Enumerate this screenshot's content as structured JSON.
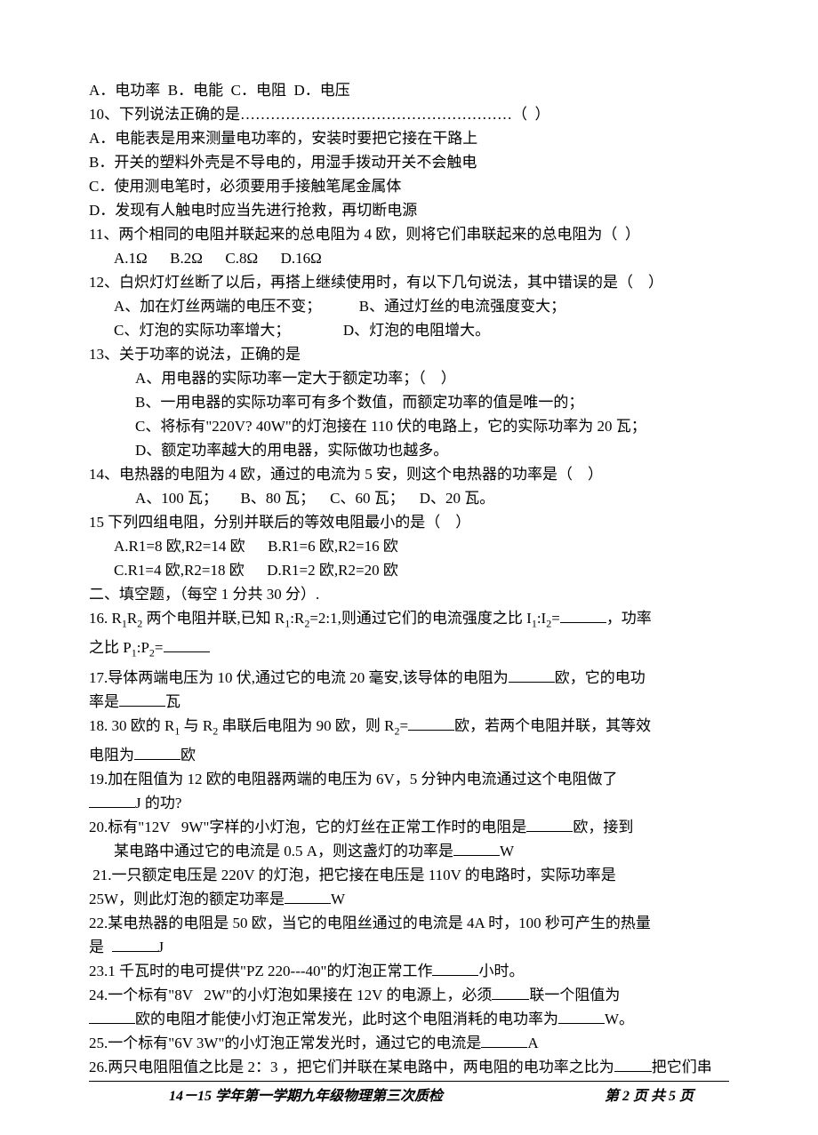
{
  "q9_options": "A．电功率  B．电能  C．电阻  D．电压",
  "q10_stem": "10、下列说法正确的是………………………………………………（  ）",
  "q10_a": "A．电能表是用来测量电功率的，安装时要把它接在干路上",
  "q10_b": "B．开关的塑料外壳是不导电的，用湿手拨动开关不会触电",
  "q10_c": "C．使用测电笔时，必须要用手接触笔尾金属体",
  "q10_d": "D．发现有人触电时应当先进行抢救，再切断电源",
  "q11": "11、两个相同的电阻并联起来的总电阻为 4 欧，则将它们串联起来的总电阻为（  ）",
  "q11_opts": "A.1Ω      B.2Ω      C.8Ω      D.16Ω",
  "q12": "12、白炽灯灯丝断了以后，再搭上继续使用时，有以下几句说法，其中错误的是（    ）",
  "q12_ab": "A、加在灯丝两端的电压不变；          B、通过灯丝的电流强度变大；",
  "q12_cd": "C、灯泡的实际功率增大；              D、灯泡的电阻增大。",
  "q13": "13、关于功率的说法，正确的是",
  "q13_a": "A、用电器的实际功率一定大于额定功率；（    ）",
  "q13_b": "B、一用电器的实际功率可有多个数值，而额定功率的值是唯一的；",
  "q13_c": "C、将标有\"220V? 40W\"的灯泡接在 110 伏的电路上，它的实际功率为 20 瓦；",
  "q13_d": "D、额定功率越大的用电器，实际做功也越多。",
  "q14": "14、电热器的电阻为 4 欧，通过的电流为 5 安，则这个电热器的功率是（    ）",
  "q14_opts": "A、100 瓦；      B、80 瓦；    C、60 瓦；    D、20 瓦。",
  "q15": "15 下列四组电阻，分别并联后的等效电阻最小的是（    ）",
  "q15_ab": "A.R1=8 欧,R2=14 欧      B.R1=6 欧,R2=16 欧",
  "q15_cd": "C.R1=4 欧,R2=18 欧      D.R1=2 欧,R2=20 欧",
  "section2": "二、填空题，（每空 1 分共 30 分）.",
  "q16_a": "16. R",
  "q16_b": "R",
  "q16_c": " 两个电阻并联,已知 R",
  "q16_d": ":R",
  "q16_e": "=2:1,则通过它们的电流强度之比 I",
  "q16_f": ":I",
  "q16_g": "=",
  "q16_h": "，功率",
  "q16_2a": "之比 P",
  "q16_2b": ":P",
  "q16_2c": "=",
  "q17_a": "17.导体两端电压为 10 伏,通过它的电流 20 毫安,该导体的电阻为",
  "q17_b": "欧，它的电功",
  "q17_c": "率是",
  "q17_d": "瓦",
  "q18_a": "18. 30 欧的 R",
  "q18_b": " 与 R",
  "q18_c": " 串联后电阻为 90 欧，则 R",
  "q18_d": "=",
  "q18_e": "欧，若两个电阻并联，其等效",
  "q18_f": "电阻为",
  "q18_g": "欧",
  "q19_a": "19.加在阻值为 12 欧的电阻器两端的电压为 6V，5 分钟内电流通过这个电阻做了",
  "q19_b": "J 的功?",
  "q20_a": "20.标有\"12V   9W\"字样的小灯泡，它的灯丝在正常工作时的电阻是",
  "q20_b": "欧，接到",
  "q20_c": "某电路中通过它的电流是 0.5 A，则这盏灯的功率是",
  "q20_d": "W",
  "q21_a": " 21.一只额定电压是 220V 的灯泡，把它接在电压是 110V 的电路时，实际功率是",
  "q21_b": "25W，则此灯泡的额定功率是",
  "q21_c": "W",
  "q22_a": "22.某电热器的电阻是 50 欧，当它的电阻丝通过的电流是 4A 时，100 秒可产生的热量",
  "q22_b": "是  ",
  "q22_c": "J",
  "q23_a": "23.1 千瓦时的电可提供\"PZ 220---40\"的灯泡正常工作",
  "q23_b": "小时。",
  "q24_a": "24.一个标有\"8V   2W\"的小灯泡如果接在 12V 的电源上，必须",
  "q24_b": "联一个阻值为",
  "q24_c": "欧的电阻才能使小灯泡正常发光，此时这个电阻消耗的电功率为",
  "q24_d": "W。",
  "q25_a": "25.一个标有\"6V 3W\"的小灯泡正常发光时，通过它的电流是",
  "q25_b": "A",
  "q26_a": "26.两只电阻阻值之比是 2：3 ，把它们并联在某电路中，两电阻的电功率之比为",
  "q26_b": "把它们串",
  "footer_left": "14－15 学年第一学期九年级物理第三次质检",
  "footer_right": "第 2 页 共 5 页",
  "sub1": "1",
  "sub2": "2"
}
